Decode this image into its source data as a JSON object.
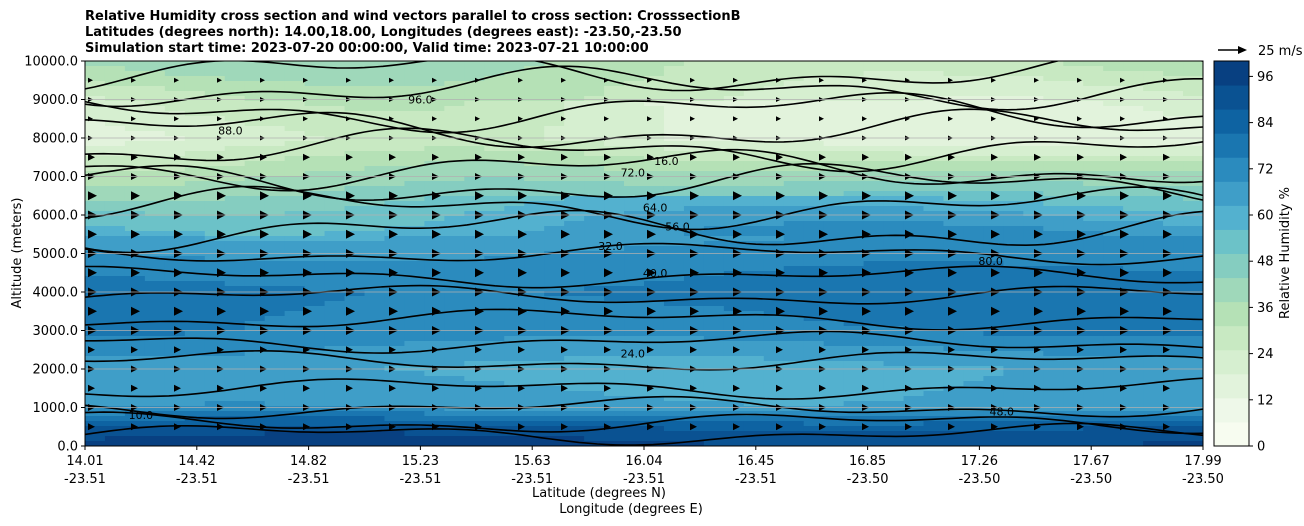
{
  "chart_data": {
    "type": "contour",
    "title_lines": [
      "Relative Humidity cross section and wind vectors parallel to cross section: CrosssectionB",
      "Latitudes (degrees north): 14.00,18.00, Longitudes (degrees east): -23.50,-23.50",
      "Simulation start time: 2023-07-20 00:00:00, Valid time: 2023-07-21 10:00:00"
    ],
    "ylabel": "Altitude (meters)",
    "xlabel_lines": [
      "Latitude (degrees N)",
      "Longitude (degrees E)"
    ],
    "ylim": [
      0,
      10000
    ],
    "yticks": [
      "0.0",
      "1000.0",
      "2000.0",
      "3000.0",
      "4000.0",
      "5000.0",
      "6000.0",
      "7000.0",
      "8000.0",
      "9000.0",
      "10000.0"
    ],
    "xticks": [
      {
        "lat": "14.01",
        "lon": "-23.51"
      },
      {
        "lat": "14.42",
        "lon": "-23.51"
      },
      {
        "lat": "14.82",
        "lon": "-23.51"
      },
      {
        "lat": "15.23",
        "lon": "-23.51"
      },
      {
        "lat": "15.63",
        "lon": "-23.51"
      },
      {
        "lat": "16.04",
        "lon": "-23.51"
      },
      {
        "lat": "16.45",
        "lon": "-23.51"
      },
      {
        "lat": "16.85",
        "lon": "-23.50"
      },
      {
        "lat": "17.26",
        "lon": "-23.50"
      },
      {
        "lat": "17.67",
        "lon": "-23.50"
      },
      {
        "lat": "17.99",
        "lon": "-23.50"
      }
    ],
    "colorbar": {
      "label": "Relative Humidity %",
      "ticks": [
        "0",
        "12",
        "24",
        "36",
        "48",
        "60",
        "72",
        "84",
        "96"
      ],
      "levels_step": 4,
      "range": [
        0,
        100
      ],
      "colors": [
        "#f7fcf0",
        "#eef8e9",
        "#e2f3dc",
        "#d6efd0",
        "#c8e9c2",
        "#b5e1b6",
        "#9fd8ba",
        "#85cdc0",
        "#6cc2c8",
        "#53b1cf",
        "#3f9ec8",
        "#2b8bbe",
        "#1a76b0",
        "#0e63a2",
        "#0a5292",
        "#084081"
      ]
    },
    "grid": "horizontal",
    "quiver_key": "25 m/s",
    "contour_labels": [
      "10.0",
      "32.0",
      "24.0",
      "16.0",
      "40.0",
      "48.0",
      "56.0",
      "64.0",
      "72.0",
      "80.0",
      "88.0",
      "96.0"
    ],
    "rh_profile": [
      {
        "alt": 0,
        "rh": 96
      },
      {
        "alt": 500,
        "rh": 88
      },
      {
        "alt": 1000,
        "rh": 66
      },
      {
        "alt": 2000,
        "rh": 62
      },
      {
        "alt": 3000,
        "rh": 74
      },
      {
        "alt": 4000,
        "rh": 78
      },
      {
        "alt": 5000,
        "rh": 70
      },
      {
        "alt": 6000,
        "rh": 58
      },
      {
        "alt": 7000,
        "rh": 42
      },
      {
        "alt": 8000,
        "rh": 22
      },
      {
        "alt": 9000,
        "rh": 26
      },
      {
        "alt": 10000,
        "rh": 36
      }
    ]
  }
}
